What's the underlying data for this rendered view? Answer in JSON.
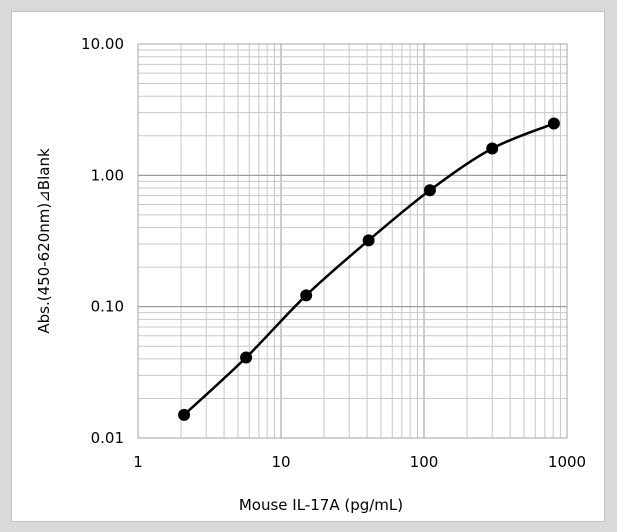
{
  "chart_data": {
    "type": "scatter",
    "xscale": "log",
    "yscale": "log",
    "xlim": [
      1,
      1000
    ],
    "ylim": [
      0.01,
      10
    ],
    "xlabel": "Mouse IL-17A (pg/mL)",
    "ylabel": "Abs.(450-620nm)⊿Blank",
    "x_ticks": [
      "1",
      "10",
      "100",
      "1000"
    ],
    "y_ticks": [
      "0.01",
      "0.10",
      "1.00",
      "10.00"
    ],
    "grid": true,
    "line": "smooth",
    "series": [
      {
        "x": [
          2.1,
          5.7,
          15,
          41,
          110,
          300,
          810
        ],
        "y": [
          0.015,
          0.041,
          0.122,
          0.32,
          0.77,
          1.6,
          2.48
        ]
      }
    ],
    "colors": {
      "line": "#000000",
      "marker": "#000000",
      "grid": "#c8c8c8",
      "frame_bg": "#ffffff",
      "page_bg": "#d9d9d9"
    }
  }
}
